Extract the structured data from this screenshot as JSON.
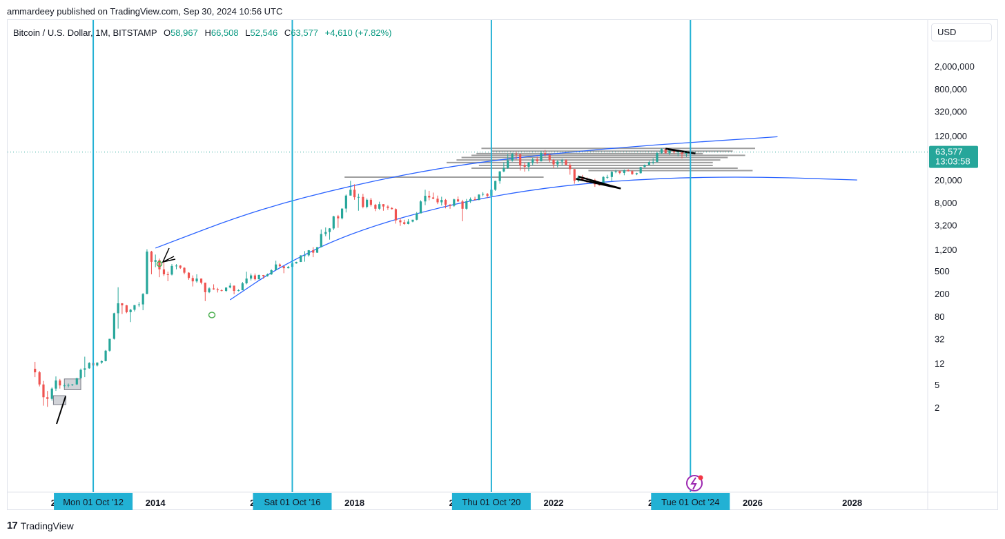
{
  "header": {
    "publisher_line": "ammardeey published on TradingView.com, Sep 30, 2024 10:56 UTC"
  },
  "legend": {
    "symbol": "Bitcoin / U.S. Dollar, 1M, BITSTAMP",
    "open_label": "O",
    "open": "58,967",
    "high_label": "H",
    "high": "66,508",
    "low_label": "L",
    "low": "52,546",
    "close_label": "C",
    "close": "63,577",
    "change": "+4,610 (+7.82%)"
  },
  "currency_button": "USD",
  "price_tag": {
    "price": "63,577",
    "countdown": "13:03:58",
    "color": "#26a69a"
  },
  "footer": {
    "brand": "TradingView",
    "logo": "17"
  },
  "colors": {
    "up": "#26a69a",
    "down": "#ef5350",
    "cycle_line": "#22b1d4",
    "channel": "#2962ff",
    "levels": "#9e9e9e",
    "tag_bg": "#22b1d4"
  },
  "chart_data": {
    "type": "candlestick",
    "title": "Bitcoin / U.S. Dollar, 1M, BITSTAMP",
    "scale": "log",
    "y_ticks": [
      "2,000,000",
      "800,000",
      "320,000",
      "120,000",
      "20,000",
      "8,000",
      "3,200",
      "1,200",
      "500",
      "200",
      "80",
      "32",
      "12",
      "5",
      "2"
    ],
    "y_tick_values": [
      2000000,
      800000,
      320000,
      120000,
      20000,
      8000,
      3200,
      1200,
      500,
      200,
      80,
      32,
      12,
      5,
      2
    ],
    "x_ticks": [
      {
        "label": "20",
        "year": 2012.0
      },
      {
        "label": "2014",
        "year": 2014.0
      },
      {
        "label": "20",
        "year": 2016.0
      },
      {
        "label": "2018",
        "year": 2018.0
      },
      {
        "label": "20",
        "year": 2020.0
      },
      {
        "label": "2022",
        "year": 2022.0
      },
      {
        "label": "20",
        "year": 2024.0
      },
      {
        "label": "2026",
        "year": 2026.0
      },
      {
        "label": "2028",
        "year": 2028.0
      }
    ],
    "cycle_lines": [
      {
        "label": "Mon 01 Oct '12",
        "year": 2012.75
      },
      {
        "label": "Sat 01 Oct '16",
        "year": 2016.75
      },
      {
        "label": "Thu 01 Oct '20",
        "year": 2020.75
      },
      {
        "label": "Tue 01 Oct '24",
        "year": 2024.75
      }
    ],
    "last_price": 63577,
    "candles": [
      [
        2011.58,
        9.8,
        13,
        7,
        8.5
      ],
      [
        2011.67,
        8.5,
        9,
        4.8,
        5.2
      ],
      [
        2011.75,
        5.2,
        6,
        2.2,
        3.1
      ],
      [
        2011.83,
        3.1,
        4,
        2.1,
        2.9
      ],
      [
        2011.92,
        2.9,
        4.6,
        2.7,
        4.4
      ],
      [
        2012.0,
        4.4,
        7.2,
        4,
        6.1
      ],
      [
        2012.08,
        6.1,
        6.5,
        4.4,
        5
      ],
      [
        2012.17,
        5,
        5.4,
        4.6,
        5
      ],
      [
        2012.25,
        5,
        5.4,
        4.6,
        5.1
      ],
      [
        2012.33,
        5.1,
        5.3,
        4.9,
        5.2
      ],
      [
        2012.42,
        5.2,
        6.8,
        5.1,
        6.7
      ],
      [
        2012.5,
        6.7,
        9.9,
        6.5,
        9.4
      ],
      [
        2012.58,
        9.4,
        16,
        7,
        10
      ],
      [
        2012.67,
        10,
        12.8,
        9.8,
        12.4
      ],
      [
        2012.75,
        12.4,
        12.8,
        11,
        11.2
      ],
      [
        2012.83,
        11.2,
        12.7,
        10.8,
        12.6
      ],
      [
        2012.92,
        12.6,
        13.8,
        12,
        13.4
      ],
      [
        2013.0,
        13.4,
        21,
        13.2,
        20.4
      ],
      [
        2013.08,
        20.4,
        33,
        19.6,
        33
      ],
      [
        2013.17,
        33,
        95,
        32,
        93
      ],
      [
        2013.25,
        93,
        266,
        50,
        139
      ],
      [
        2013.33,
        139,
        140,
        90,
        128
      ],
      [
        2013.42,
        128,
        130,
        93,
        97
      ],
      [
        2013.5,
        97,
        111,
        65,
        107
      ],
      [
        2013.58,
        107,
        130,
        100,
        129
      ],
      [
        2013.67,
        129,
        146,
        120,
        133
      ],
      [
        2013.75,
        133,
        210,
        105,
        203
      ],
      [
        2013.83,
        203,
        1240,
        200,
        1130
      ],
      [
        2013.92,
        1130,
        1163,
        450,
        745
      ],
      [
        2014.0,
        745,
        1000,
        600,
        800
      ],
      [
        2014.08,
        800,
        850,
        400,
        550
      ],
      [
        2014.17,
        550,
        750,
        420,
        450
      ],
      [
        2014.25,
        450,
        500,
        340,
        445
      ],
      [
        2014.33,
        445,
        680,
        430,
        630
      ],
      [
        2014.42,
        630,
        680,
        550,
        640
      ],
      [
        2014.5,
        640,
        650,
        560,
        585
      ],
      [
        2014.58,
        585,
        600,
        450,
        480
      ],
      [
        2014.67,
        480,
        490,
        360,
        387
      ],
      [
        2014.75,
        387,
        430,
        275,
        338
      ],
      [
        2014.83,
        338,
        450,
        320,
        378
      ],
      [
        2014.92,
        378,
        380,
        300,
        320
      ],
      [
        2015.0,
        320,
        320,
        152,
        218
      ],
      [
        2015.08,
        218,
        265,
        210,
        254
      ],
      [
        2015.17,
        254,
        300,
        240,
        244
      ],
      [
        2015.25,
        244,
        260,
        215,
        236
      ],
      [
        2015.33,
        236,
        245,
        225,
        230
      ],
      [
        2015.42,
        230,
        265,
        220,
        263
      ],
      [
        2015.5,
        263,
        315,
        255,
        284
      ],
      [
        2015.58,
        284,
        285,
        200,
        230
      ],
      [
        2015.67,
        230,
        245,
        225,
        236
      ],
      [
        2015.75,
        236,
        330,
        235,
        312
      ],
      [
        2015.83,
        312,
        500,
        300,
        378
      ],
      [
        2015.92,
        378,
        465,
        350,
        430
      ],
      [
        2016.0,
        430,
        465,
        350,
        368
      ],
      [
        2016.08,
        368,
        445,
        365,
        437
      ],
      [
        2016.17,
        437,
        438,
        375,
        416
      ],
      [
        2016.25,
        416,
        465,
        410,
        448
      ],
      [
        2016.33,
        448,
        550,
        440,
        531
      ],
      [
        2016.42,
        531,
        780,
        530,
        670
      ],
      [
        2016.5,
        670,
        700,
        600,
        624
      ],
      [
        2016.58,
        624,
        620,
        470,
        575
      ],
      [
        2016.67,
        575,
        630,
        570,
        608
      ],
      [
        2016.75,
        608,
        740,
        605,
        700
      ],
      [
        2016.83,
        700,
        750,
        690,
        742
      ],
      [
        2016.92,
        742,
        975,
        740,
        966
      ],
      [
        2017.0,
        966,
        1150,
        750,
        970
      ],
      [
        2017.08,
        970,
        1200,
        920,
        1190
      ],
      [
        2017.17,
        1190,
        1350,
        900,
        1080
      ],
      [
        2017.25,
        1080,
        1350,
        1070,
        1350
      ],
      [
        2017.33,
        1350,
        2760,
        1340,
        2300
      ],
      [
        2017.42,
        2300,
        3000,
        2100,
        2490
      ],
      [
        2017.5,
        2490,
        2920,
        1830,
        2880
      ],
      [
        2017.58,
        2880,
        4800,
        2700,
        4700
      ],
      [
        2017.67,
        4700,
        4980,
        2950,
        4340
      ],
      [
        2017.75,
        4340,
        6450,
        4150,
        6450
      ],
      [
        2017.83,
        6450,
        11400,
        5500,
        10900
      ],
      [
        2017.92,
        10900,
        19800,
        10900,
        13800
      ],
      [
        2018.0,
        13800,
        17200,
        9200,
        10200
      ],
      [
        2018.08,
        10200,
        11800,
        5900,
        10300
      ],
      [
        2018.17,
        10300,
        11700,
        6500,
        6900
      ],
      [
        2018.25,
        6900,
        9700,
        6500,
        9200
      ],
      [
        2018.33,
        9200,
        9950,
        7000,
        7500
      ],
      [
        2018.42,
        7500,
        7780,
        5800,
        6400
      ],
      [
        2018.5,
        6400,
        8500,
        6100,
        7700
      ],
      [
        2018.58,
        7700,
        7700,
        5900,
        7000
      ],
      [
        2018.67,
        7000,
        7400,
        6100,
        6600
      ],
      [
        2018.75,
        6600,
        6800,
        6200,
        6300
      ],
      [
        2018.83,
        6300,
        6500,
        3500,
        4000
      ],
      [
        2018.92,
        4000,
        4400,
        3200,
        3700
      ],
      [
        2019.0,
        3700,
        4100,
        3350,
        3450
      ],
      [
        2019.08,
        3450,
        4200,
        3400,
        3800
      ],
      [
        2019.17,
        3800,
        4100,
        3700,
        4100
      ],
      [
        2019.25,
        4100,
        5600,
        4000,
        5300
      ],
      [
        2019.33,
        5300,
        9000,
        5300,
        8600
      ],
      [
        2019.42,
        8600,
        13800,
        7400,
        10800
      ],
      [
        2019.5,
        10800,
        13200,
        9000,
        10100
      ],
      [
        2019.58,
        10100,
        12300,
        9400,
        9600
      ],
      [
        2019.67,
        9600,
        10900,
        7700,
        8300
      ],
      [
        2019.75,
        8300,
        10400,
        7300,
        9150
      ],
      [
        2019.83,
        9150,
        9500,
        6500,
        7550
      ],
      [
        2019.92,
        7550,
        7700,
        6400,
        7200
      ],
      [
        2020.0,
        7200,
        9600,
        6900,
        9350
      ],
      [
        2020.08,
        9350,
        10500,
        8400,
        8600
      ],
      [
        2020.17,
        8600,
        9200,
        3850,
        6400
      ],
      [
        2020.25,
        6400,
        9500,
        6150,
        8650
      ],
      [
        2020.33,
        8650,
        10100,
        8100,
        9450
      ],
      [
        2020.42,
        9450,
        10400,
        8900,
        9150
      ],
      [
        2020.5,
        9150,
        11500,
        9000,
        11350
      ],
      [
        2020.58,
        11350,
        12500,
        10600,
        11650
      ],
      [
        2020.67,
        11650,
        12100,
        9850,
        10780
      ],
      [
        2020.75,
        10780,
        14100,
        10400,
        13800
      ],
      [
        2020.83,
        13800,
        19900,
        13200,
        19700
      ],
      [
        2020.92,
        19700,
        29300,
        17600,
        28990
      ],
      [
        2021.0,
        28990,
        41950,
        28100,
        33100
      ],
      [
        2021.08,
        33100,
        58330,
        32300,
        45200
      ],
      [
        2021.17,
        45200,
        61800,
        43000,
        58800
      ],
      [
        2021.25,
        58800,
        64900,
        47000,
        57800
      ],
      [
        2021.33,
        57800,
        59500,
        30000,
        37300
      ],
      [
        2021.42,
        37300,
        41300,
        28800,
        35000
      ],
      [
        2021.5,
        35000,
        42400,
        29300,
        41500
      ],
      [
        2021.58,
        41500,
        50500,
        37300,
        47100
      ],
      [
        2021.67,
        47100,
        52900,
        39600,
        43800
      ],
      [
        2021.75,
        43800,
        66900,
        43300,
        61300
      ],
      [
        2021.83,
        61300,
        69000,
        53000,
        57000
      ],
      [
        2021.92,
        57000,
        59000,
        42000,
        46300
      ],
      [
        2022.0,
        46300,
        47900,
        33000,
        38500
      ],
      [
        2022.08,
        38500,
        45800,
        34300,
        43200
      ],
      [
        2022.17,
        43200,
        48200,
        37200,
        45500
      ],
      [
        2022.25,
        45500,
        47400,
        37600,
        37700
      ],
      [
        2022.33,
        37700,
        40000,
        25400,
        31800
      ],
      [
        2022.42,
        31800,
        32000,
        17600,
        19900
      ],
      [
        2022.5,
        19900,
        24700,
        18800,
        23300
      ],
      [
        2022.58,
        23300,
        25200,
        19600,
        20050
      ],
      [
        2022.67,
        20050,
        22800,
        18150,
        19420
      ],
      [
        2022.75,
        19420,
        21000,
        18200,
        20500
      ],
      [
        2022.83,
        20500,
        21500,
        15500,
        17150
      ],
      [
        2022.92,
        17150,
        18400,
        16300,
        16550
      ],
      [
        2023.0,
        16550,
        23900,
        16500,
        23130
      ],
      [
        2023.08,
        23130,
        25250,
        21400,
        23140
      ],
      [
        2023.17,
        23140,
        29200,
        19550,
        28480
      ],
      [
        2023.25,
        28480,
        31000,
        26940,
        29250
      ],
      [
        2023.33,
        29250,
        29800,
        25800,
        27200
      ],
      [
        2023.42,
        27200,
        31400,
        24800,
        30470
      ],
      [
        2023.5,
        30470,
        31800,
        28900,
        29250
      ],
      [
        2023.58,
        29250,
        30200,
        25300,
        25940
      ],
      [
        2023.67,
        25940,
        27500,
        24900,
        26960
      ],
      [
        2023.75,
        26960,
        35000,
        26600,
        34650
      ],
      [
        2023.83,
        34650,
        38400,
        34100,
        37720
      ],
      [
        2023.92,
        37720,
        44700,
        37600,
        42280
      ],
      [
        2024.0,
        42280,
        48970,
        38500,
        42580
      ],
      [
        2024.08,
        42580,
        64000,
        41900,
        61130
      ],
      [
        2024.17,
        61130,
        73800,
        59300,
        71330
      ],
      [
        2024.25,
        71330,
        72800,
        59600,
        60640
      ],
      [
        2024.33,
        60640,
        71950,
        56500,
        67490
      ],
      [
        2024.42,
        67490,
        71950,
        58400,
        62760
      ],
      [
        2024.5,
        62760,
        70000,
        53500,
        64620
      ],
      [
        2024.58,
        64620,
        65600,
        49000,
        58970
      ],
      [
        2024.67,
        58967,
        66508,
        52546,
        63577
      ]
    ],
    "levels": [
      {
        "y": 73800,
        "x0": 2020.55,
        "x1": 2026.05
      },
      {
        "y": 66000,
        "x0": 2020.75,
        "x1": 2025.6
      },
      {
        "y": 59500,
        "x0": 2020.45,
        "x1": 2025.0
      },
      {
        "y": 55500,
        "x0": 2020.35,
        "x1": 2025.85
      },
      {
        "y": 51000,
        "x0": 2020.15,
        "x1": 2025.5
      },
      {
        "y": 46000,
        "x0": 2020.05,
        "x1": 2025.35
      },
      {
        "y": 41500,
        "x0": 2019.85,
        "x1": 2025.2
      },
      {
        "y": 37000,
        "x0": 2020.5,
        "x1": 2025.2
      },
      {
        "y": 33000,
        "x0": 2020.35,
        "x1": 2025.7
      },
      {
        "y": 30000,
        "x0": 2022.7,
        "x1": 2026.0
      },
      {
        "y": 23000,
        "x0": 2017.8,
        "x1": 2021.8
      }
    ],
    "channel": {
      "upper": [
        [
          2014.0,
          1300
        ],
        [
          2016.0,
          6000
        ],
        [
          2018.0,
          17000
        ],
        [
          2020.0,
          37000
        ],
        [
          2022.0,
          60000
        ],
        [
          2024.0,
          85000
        ],
        [
          2026.0,
          110000
        ],
        [
          2026.5,
          118000
        ]
      ],
      "lower": [
        [
          2015.5,
          160
        ],
        [
          2016.5,
          620
        ],
        [
          2018.0,
          2600
        ],
        [
          2020.0,
          8000
        ],
        [
          2022.0,
          16000
        ],
        [
          2024.0,
          22000
        ],
        [
          2026.0,
          23500
        ],
        [
          2028.1,
          20500
        ]
      ]
    },
    "wedges": [
      {
        "pts": [
          [
            2022.45,
            21500
          ],
          [
            2023.35,
            14500
          ],
          [
            2022.5,
            23500
          ]
        ]
      },
      {
        "pts": [
          [
            2024.25,
            73000
          ],
          [
            2024.85,
            60000
          ],
          [
            2024.3,
            71000
          ]
        ]
      }
    ],
    "boxes": [
      {
        "x0": 2011.95,
        "x1": 2012.2,
        "y0": 2.3,
        "y1": 3.3
      },
      {
        "x0": 2012.17,
        "x1": 2012.5,
        "y0": 4.2,
        "y1": 6.5
      }
    ]
  }
}
